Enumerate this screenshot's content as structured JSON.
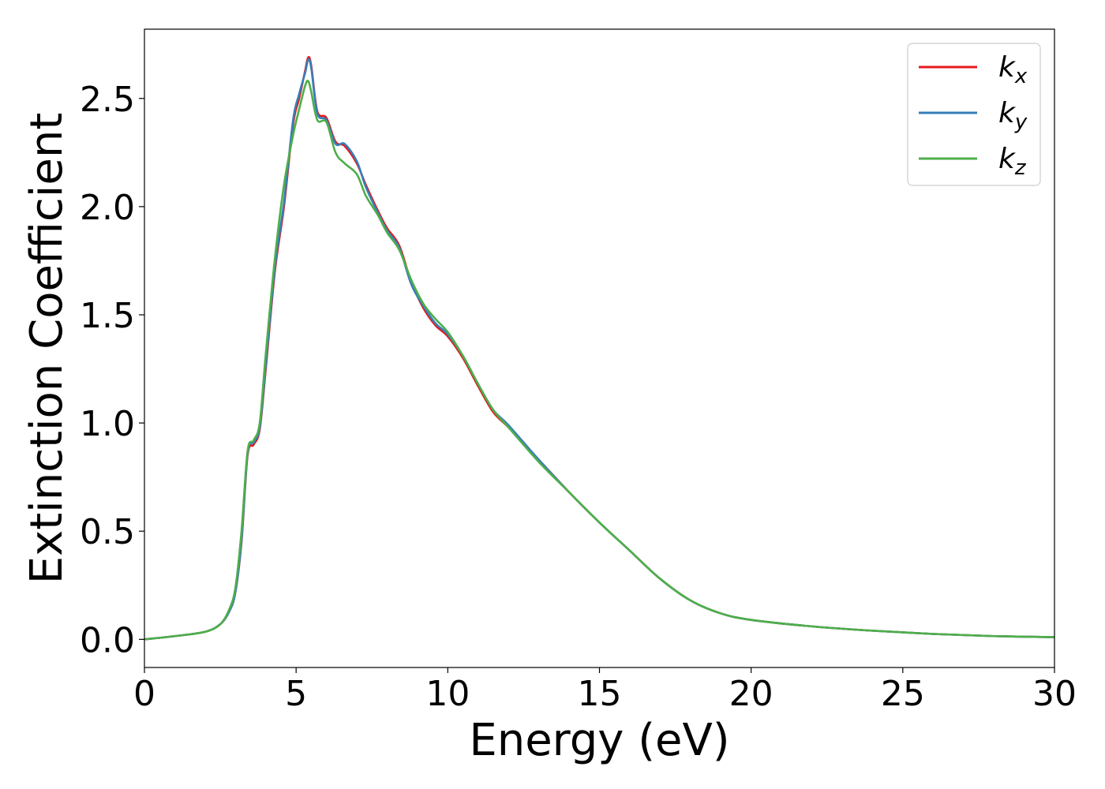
{
  "chart_data": {
    "type": "line",
    "title": "",
    "xlabel": "Energy (eV)",
    "ylabel": "Extinction Coefficient",
    "xlim": [
      0,
      30
    ],
    "ylim": [
      -0.13,
      2.82
    ],
    "xticks": [
      0,
      5,
      10,
      15,
      20,
      25,
      30
    ],
    "xtick_labels": [
      "0",
      "5",
      "10",
      "15",
      "20",
      "25",
      "30"
    ],
    "yticks": [
      0.0,
      0.5,
      1.0,
      1.5,
      2.0,
      2.5
    ],
    "ytick_labels": [
      "0.0",
      "0.5",
      "1.0",
      "1.5",
      "2.0",
      "2.5"
    ],
    "grid": false,
    "legend_position": "top-right",
    "series": [
      {
        "name": "k_x",
        "label_main": "k",
        "label_sub": "x",
        "color": "#e41a1c",
        "x": [
          0,
          1,
          2,
          2.5,
          2.8,
          3.0,
          3.2,
          3.4,
          3.6,
          3.8,
          4.0,
          4.3,
          4.6,
          4.9,
          5.1,
          5.3,
          5.4,
          5.5,
          5.7,
          6.0,
          6.3,
          6.6,
          7.0,
          7.3,
          7.7,
          8.0,
          8.4,
          8.8,
          9.2,
          9.6,
          10.0,
          10.5,
          11.0,
          11.5,
          12.0,
          13.0,
          14.0,
          15.0,
          16.0,
          17.0,
          18.0,
          19.0,
          20.0,
          22.0,
          24.0,
          26.0,
          28.0,
          30.0
        ],
        "y": [
          0.0,
          0.015,
          0.035,
          0.07,
          0.13,
          0.22,
          0.45,
          0.85,
          0.9,
          0.97,
          1.25,
          1.7,
          2.0,
          2.38,
          2.5,
          2.63,
          2.69,
          2.65,
          2.44,
          2.41,
          2.3,
          2.28,
          2.2,
          2.1,
          1.98,
          1.9,
          1.82,
          1.65,
          1.53,
          1.45,
          1.4,
          1.3,
          1.17,
          1.05,
          0.98,
          0.83,
          0.68,
          0.54,
          0.41,
          0.28,
          0.18,
          0.12,
          0.09,
          0.06,
          0.04,
          0.025,
          0.015,
          0.01
        ]
      },
      {
        "name": "k_y",
        "label_main": "k",
        "label_sub": "y",
        "color": "#377eb8",
        "x": [
          0,
          1,
          2,
          2.5,
          2.8,
          3.0,
          3.2,
          3.4,
          3.6,
          3.8,
          4.0,
          4.3,
          4.6,
          4.9,
          5.1,
          5.3,
          5.4,
          5.5,
          5.7,
          6.0,
          6.3,
          6.6,
          7.0,
          7.3,
          7.7,
          8.0,
          8.4,
          8.8,
          9.2,
          9.6,
          10.0,
          10.5,
          11.0,
          11.5,
          12.0,
          13.0,
          14.0,
          15.0,
          16.0,
          17.0,
          18.0,
          19.0,
          20.0,
          22.0,
          24.0,
          26.0,
          28.0,
          30.0
        ],
        "y": [
          0.0,
          0.015,
          0.035,
          0.07,
          0.13,
          0.22,
          0.46,
          0.86,
          0.91,
          0.98,
          1.27,
          1.72,
          2.02,
          2.4,
          2.52,
          2.62,
          2.68,
          2.64,
          2.43,
          2.4,
          2.29,
          2.29,
          2.21,
          2.09,
          1.97,
          1.89,
          1.81,
          1.64,
          1.54,
          1.46,
          1.41,
          1.31,
          1.18,
          1.06,
          0.99,
          0.83,
          0.68,
          0.54,
          0.41,
          0.28,
          0.18,
          0.12,
          0.09,
          0.06,
          0.04,
          0.025,
          0.015,
          0.01
        ]
      },
      {
        "name": "k_z",
        "label_main": "k",
        "label_sub": "z",
        "color": "#4daf4a",
        "x": [
          0,
          1,
          2,
          2.5,
          2.8,
          3.0,
          3.2,
          3.4,
          3.6,
          3.8,
          4.0,
          4.3,
          4.6,
          4.9,
          5.1,
          5.3,
          5.4,
          5.5,
          5.7,
          6.0,
          6.3,
          6.6,
          7.0,
          7.3,
          7.7,
          8.0,
          8.4,
          8.8,
          9.2,
          9.6,
          10.0,
          10.5,
          11.0,
          11.5,
          12.0,
          13.0,
          14.0,
          15.0,
          16.0,
          17.0,
          18.0,
          19.0,
          20.0,
          22.0,
          24.0,
          26.0,
          28.0,
          30.0
        ],
        "y": [
          0.0,
          0.015,
          0.035,
          0.07,
          0.14,
          0.24,
          0.5,
          0.87,
          0.92,
          1.0,
          1.32,
          1.76,
          2.1,
          2.33,
          2.45,
          2.56,
          2.58,
          2.53,
          2.4,
          2.39,
          2.25,
          2.2,
          2.15,
          2.05,
          1.96,
          1.88,
          1.8,
          1.66,
          1.55,
          1.48,
          1.42,
          1.31,
          1.18,
          1.06,
          0.98,
          0.82,
          0.68,
          0.54,
          0.41,
          0.28,
          0.18,
          0.12,
          0.09,
          0.06,
          0.04,
          0.025,
          0.015,
          0.01
        ]
      }
    ]
  }
}
